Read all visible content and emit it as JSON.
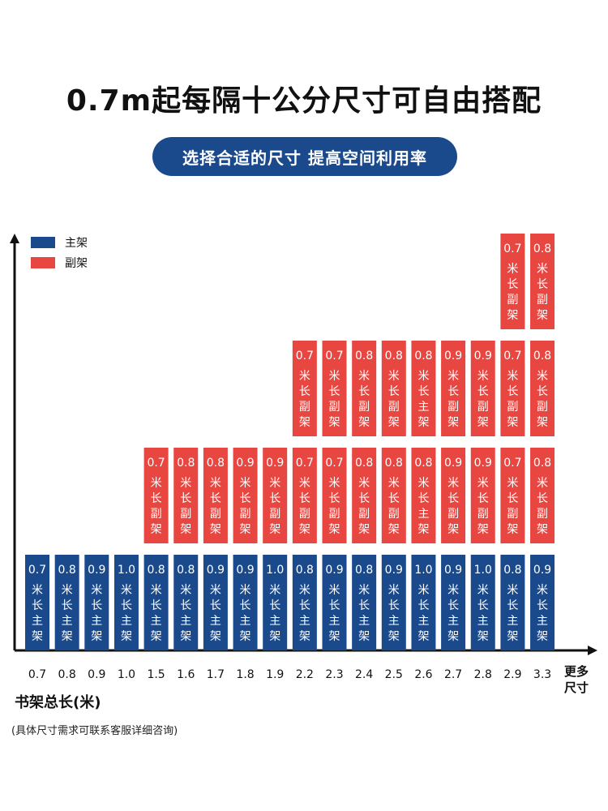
{
  "header": {
    "title": "0.7m起每隔十公分尺寸可自由搭配",
    "subtitle": "选择合适的尺寸 提高空间利用率"
  },
  "footer": {
    "caption": "书架总长(米)",
    "note": "(具体尺寸需求可联系客服详细咨询)"
  },
  "colors": {
    "main": "#1b4a8c",
    "sub": "#e84640",
    "axis": "#111111"
  },
  "chart_data": {
    "type": "bar",
    "stacked": true,
    "legend": [
      {
        "name": "主架",
        "color": "#1b4a8c"
      },
      {
        "name": "副架",
        "color": "#e84640"
      }
    ],
    "legend_position": "top-left",
    "x_more_label": [
      "更多",
      "尺寸"
    ],
    "categories": [
      "0.7",
      "0.8",
      "0.9",
      "1.0",
      "1.5",
      "1.6",
      "1.7",
      "1.8",
      "1.9",
      "2.2",
      "2.3",
      "2.4",
      "2.5",
      "2.6",
      "2.7",
      "2.8",
      "2.9",
      "3.3"
    ],
    "columns": [
      [
        {
          "size": "0.7",
          "kind": "主架"
        }
      ],
      [
        {
          "size": "0.8",
          "kind": "主架"
        }
      ],
      [
        {
          "size": "0.9",
          "kind": "主架"
        }
      ],
      [
        {
          "size": "1.0",
          "kind": "主架"
        }
      ],
      [
        {
          "size": "0.8",
          "kind": "主架"
        },
        {
          "size": "0.7",
          "kind": "副架"
        }
      ],
      [
        {
          "size": "0.8",
          "kind": "主架"
        },
        {
          "size": "0.8",
          "kind": "副架"
        }
      ],
      [
        {
          "size": "0.9",
          "kind": "主架"
        },
        {
          "size": "0.8",
          "kind": "副架"
        }
      ],
      [
        {
          "size": "0.9",
          "kind": "主架"
        },
        {
          "size": "0.9",
          "kind": "副架"
        }
      ],
      [
        {
          "size": "1.0",
          "kind": "主架"
        },
        {
          "size": "0.9",
          "kind": "副架"
        }
      ],
      [
        {
          "size": "0.8",
          "kind": "主架"
        },
        {
          "size": "0.7",
          "kind": "副架"
        },
        {
          "size": "0.7",
          "kind": "副架"
        }
      ],
      [
        {
          "size": "0.9",
          "kind": "主架"
        },
        {
          "size": "0.7",
          "kind": "副架"
        },
        {
          "size": "0.7",
          "kind": "副架"
        }
      ],
      [
        {
          "size": "0.8",
          "kind": "主架"
        },
        {
          "size": "0.8",
          "kind": "副架"
        },
        {
          "size": "0.8",
          "kind": "副架"
        }
      ],
      [
        {
          "size": "0.9",
          "kind": "主架"
        },
        {
          "size": "0.8",
          "kind": "副架"
        },
        {
          "size": "0.8",
          "kind": "副架"
        }
      ],
      [
        {
          "size": "1.0",
          "kind": "主架"
        },
        {
          "size": "0.8",
          "kind": "主架",
          "color": "副架"
        },
        {
          "size": "0.8",
          "kind": "主架",
          "color": "副架"
        }
      ],
      [
        {
          "size": "0.9",
          "kind": "主架"
        },
        {
          "size": "0.9",
          "kind": "副架"
        },
        {
          "size": "0.9",
          "kind": "副架"
        }
      ],
      [
        {
          "size": "1.0",
          "kind": "主架"
        },
        {
          "size": "0.9",
          "kind": "副架"
        },
        {
          "size": "0.9",
          "kind": "副架"
        }
      ],
      [
        {
          "size": "0.8",
          "kind": "主架"
        },
        {
          "size": "0.7",
          "kind": "副架"
        },
        {
          "size": "0.7",
          "kind": "副架"
        },
        {
          "size": "0.7",
          "kind": "副架"
        }
      ],
      [
        {
          "size": "0.9",
          "kind": "主架"
        },
        {
          "size": "0.8",
          "kind": "副架"
        },
        {
          "size": "0.8",
          "kind": "副架"
        },
        {
          "size": "0.8",
          "kind": "副架"
        }
      ]
    ],
    "unit_text": [
      "米",
      "长"
    ]
  }
}
